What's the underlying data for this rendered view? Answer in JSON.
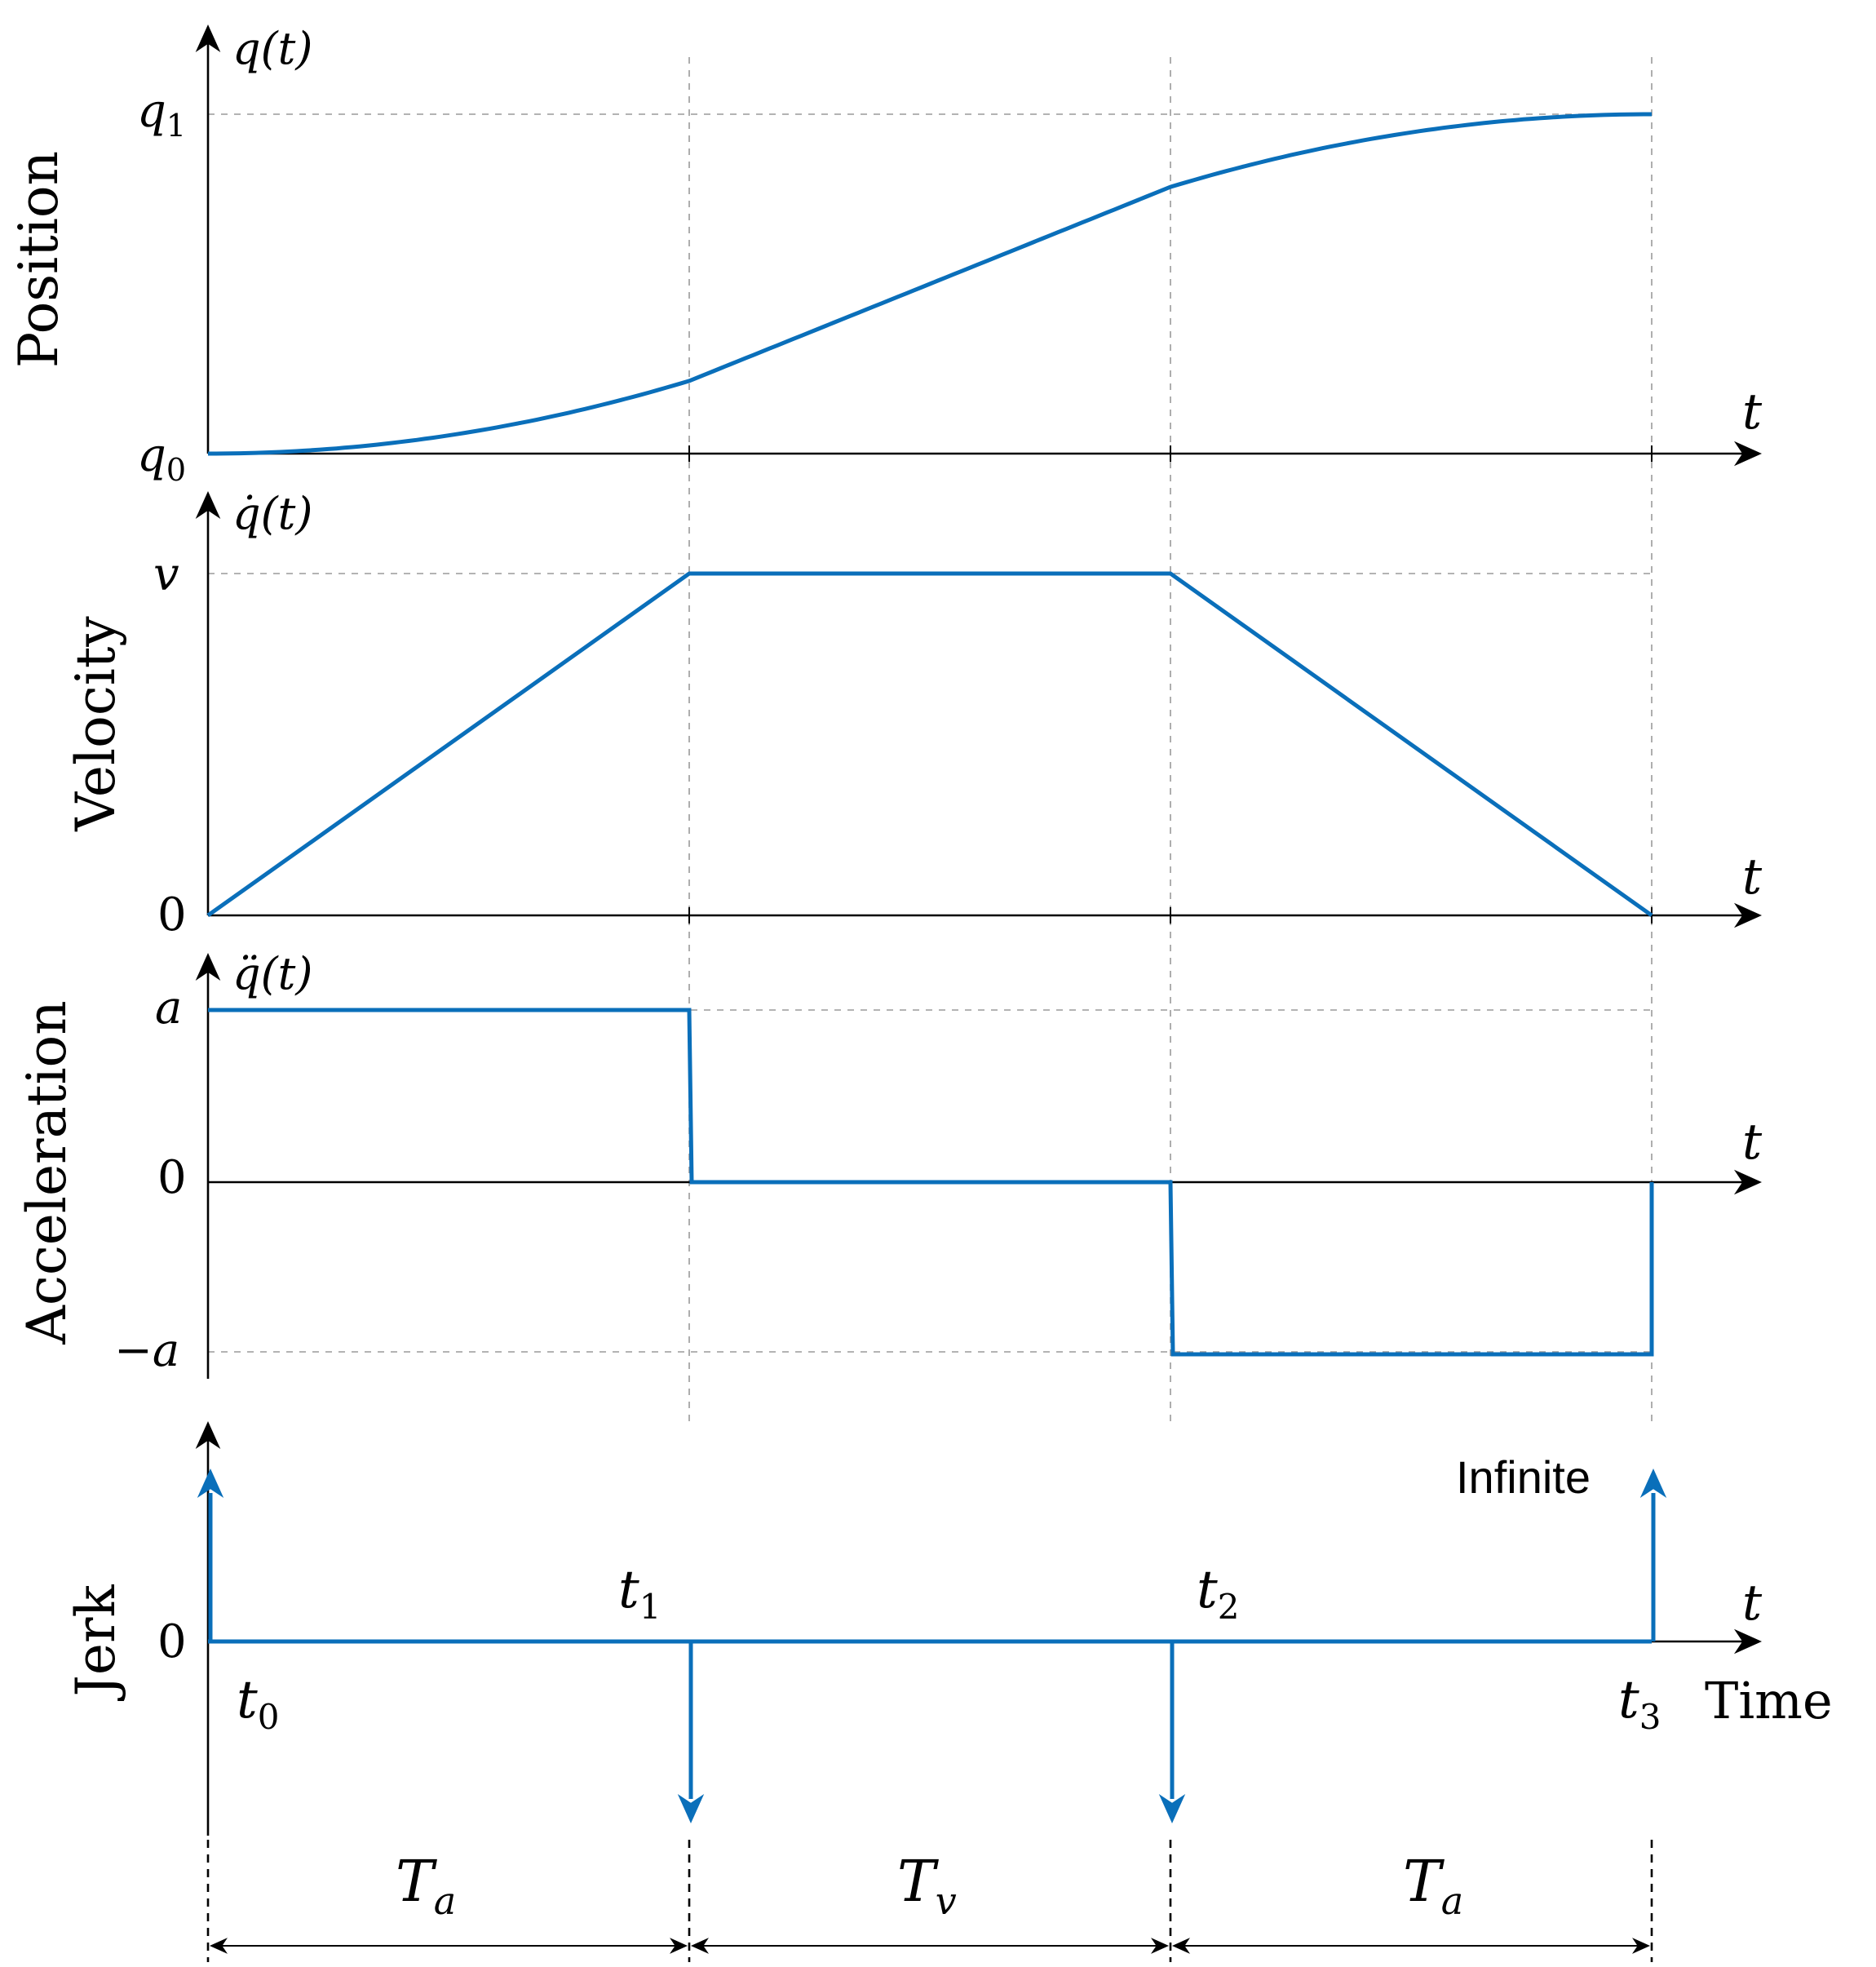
{
  "chart_data": [
    {
      "type": "line",
      "panel": "position",
      "ylabel": "Position",
      "axis_label": "q(t)",
      "xlabel": "t",
      "tick_labels": [
        "q0",
        "q1"
      ],
      "x": [
        0,
        1,
        2,
        3
      ],
      "segments": [
        {
          "from": 0,
          "to": 1,
          "shape": "parabola",
          "start": 0,
          "end": 0.2143
        },
        {
          "from": 1,
          "to": 2,
          "shape": "linear",
          "start": 0.2143,
          "end": 0.7857
        },
        {
          "from": 2,
          "to": 3,
          "shape": "parabola",
          "start": 0.7857,
          "end": 1
        }
      ],
      "ylim": [
        0,
        1
      ]
    },
    {
      "type": "line",
      "panel": "velocity",
      "ylabel": "Velocity",
      "axis_label": "q̇(t)",
      "xlabel": "t",
      "tick_labels": [
        "0",
        "v"
      ],
      "x": [
        0,
        1,
        2,
        3
      ],
      "y": [
        0,
        1,
        1,
        0
      ],
      "ylim": [
        0,
        1
      ]
    },
    {
      "type": "line",
      "panel": "acceleration",
      "ylabel": "Acceleration",
      "axis_label": "q̈(t)",
      "xlabel": "t",
      "tick_labels": [
        "a",
        "0",
        "−a"
      ],
      "x": [
        0,
        1,
        1,
        2,
        2,
        3,
        3
      ],
      "y": [
        1,
        1,
        0,
        0,
        -1,
        -1,
        0
      ],
      "ylim": [
        -1,
        1
      ]
    },
    {
      "type": "line",
      "panel": "jerk",
      "ylabel": "Jerk",
      "xlabel": "t",
      "x_axis_title": "Time",
      "tick_labels": [
        "0"
      ],
      "impulses": [
        {
          "x": 0,
          "direction": "up"
        },
        {
          "x": 1,
          "direction": "down"
        },
        {
          "x": 2,
          "direction": "down"
        },
        {
          "x": 3,
          "direction": "up"
        }
      ],
      "annotation": "Infinite",
      "time_labels": [
        {
          "base": "t",
          "sub": "0",
          "x": 0
        },
        {
          "base": "t",
          "sub": "1",
          "x": 1
        },
        {
          "base": "t",
          "sub": "2",
          "x": 2
        },
        {
          "base": "t",
          "sub": "3",
          "x": 3
        }
      ],
      "durations": [
        {
          "base": "T",
          "sub": "a",
          "from": 0,
          "to": 1
        },
        {
          "base": "T",
          "sub": "v",
          "from": 1,
          "to": 2
        },
        {
          "base": "T",
          "sub": "a",
          "from": 2,
          "to": 3
        }
      ]
    }
  ],
  "colors": {
    "curve": "#0a6fba",
    "axis": "#000000",
    "grid": "#9a9a9a"
  }
}
